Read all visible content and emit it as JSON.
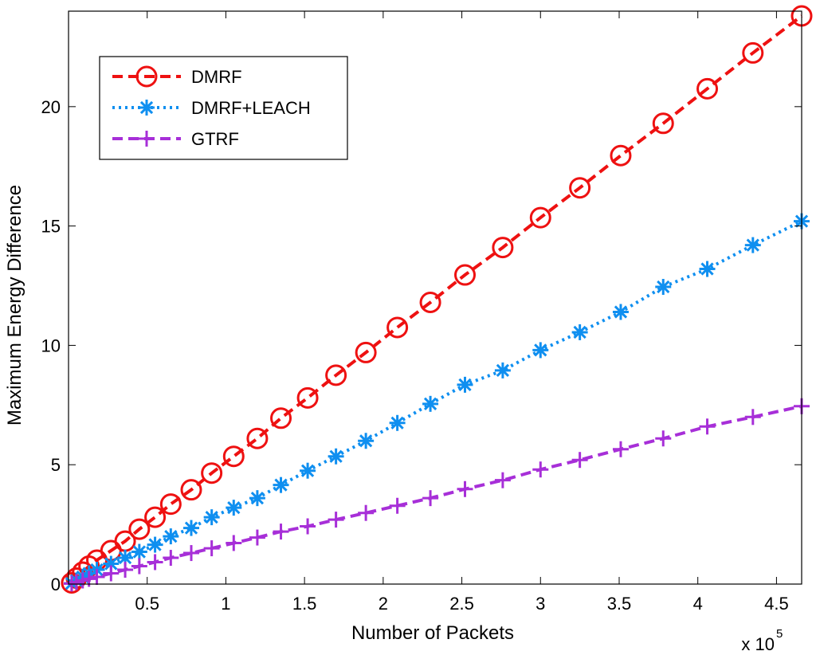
{
  "chart_data": {
    "type": "line",
    "title": "",
    "xlabel": "Number of Packets",
    "ylabel": "Maximum Energy Difference",
    "x_multiplier_base": "x 10",
    "x_multiplier_exp": "5",
    "xlim": [
      0,
      4.66
    ],
    "ylim": [
      0,
      24
    ],
    "xticks": [
      0.5,
      1,
      1.5,
      2,
      2.5,
      3,
      3.5,
      4,
      4.5
    ],
    "xtick_labels": [
      "0.5",
      "1",
      "1.5",
      "2",
      "2.5",
      "3",
      "3.5",
      "4",
      "4.5"
    ],
    "yticks": [
      0,
      5,
      10,
      15,
      20
    ],
    "ytick_labels": [
      "0",
      "5",
      "10",
      "15",
      "20"
    ],
    "grid": false,
    "legend_position": "top-left",
    "series": [
      {
        "name": "DMRF",
        "color": "#ee1111",
        "line_style": "dashed",
        "marker": "circle",
        "x": [
          0.02,
          0.05,
          0.09,
          0.13,
          0.18,
          0.27,
          0.36,
          0.45,
          0.55,
          0.65,
          0.78,
          0.91,
          1.05,
          1.2,
          1.35,
          1.52,
          1.7,
          1.89,
          2.09,
          2.3,
          2.52,
          2.76,
          3.0,
          3.25,
          3.51,
          3.78,
          4.06,
          4.35,
          4.66
        ],
        "y": [
          0.05,
          0.25,
          0.5,
          0.75,
          1.0,
          1.4,
          1.8,
          2.3,
          2.8,
          3.35,
          3.95,
          4.65,
          5.35,
          6.1,
          6.95,
          7.8,
          8.75,
          9.7,
          10.75,
          11.8,
          12.95,
          14.1,
          15.35,
          16.6,
          17.95,
          19.3,
          20.75,
          22.25,
          23.8
        ]
      },
      {
        "name": "DMRF+LEACH",
        "color": "#0f8ff0",
        "line_style": "dotted",
        "marker": "asterisk",
        "x": [
          0.02,
          0.05,
          0.09,
          0.13,
          0.18,
          0.27,
          0.36,
          0.45,
          0.55,
          0.65,
          0.78,
          0.91,
          1.05,
          1.2,
          1.35,
          1.52,
          1.7,
          1.89,
          2.09,
          2.3,
          2.52,
          2.76,
          3.0,
          3.25,
          3.51,
          3.78,
          4.06,
          4.35,
          4.66
        ],
        "y": [
          0.03,
          0.15,
          0.3,
          0.45,
          0.6,
          0.85,
          1.1,
          1.35,
          1.65,
          2.0,
          2.35,
          2.8,
          3.2,
          3.6,
          4.15,
          4.75,
          5.35,
          6.0,
          6.75,
          7.55,
          8.35,
          8.95,
          9.8,
          10.55,
          11.4,
          12.45,
          13.2,
          14.2,
          15.2
        ]
      },
      {
        "name": "GTRF",
        "color": "#a72fd8",
        "line_style": "dashed",
        "marker": "plus",
        "x": [
          0.02,
          0.05,
          0.09,
          0.13,
          0.18,
          0.27,
          0.36,
          0.45,
          0.55,
          0.65,
          0.78,
          0.91,
          1.05,
          1.2,
          1.35,
          1.52,
          1.7,
          1.89,
          2.09,
          2.3,
          2.52,
          2.76,
          3.0,
          3.25,
          3.51,
          3.78,
          4.06,
          4.35,
          4.66
        ],
        "y": [
          0.02,
          0.08,
          0.15,
          0.22,
          0.3,
          0.45,
          0.6,
          0.75,
          0.92,
          1.1,
          1.3,
          1.5,
          1.72,
          1.95,
          2.2,
          2.42,
          2.7,
          2.98,
          3.28,
          3.6,
          3.98,
          4.35,
          4.8,
          5.2,
          5.65,
          6.1,
          6.6,
          7.0,
          7.45
        ]
      }
    ]
  }
}
